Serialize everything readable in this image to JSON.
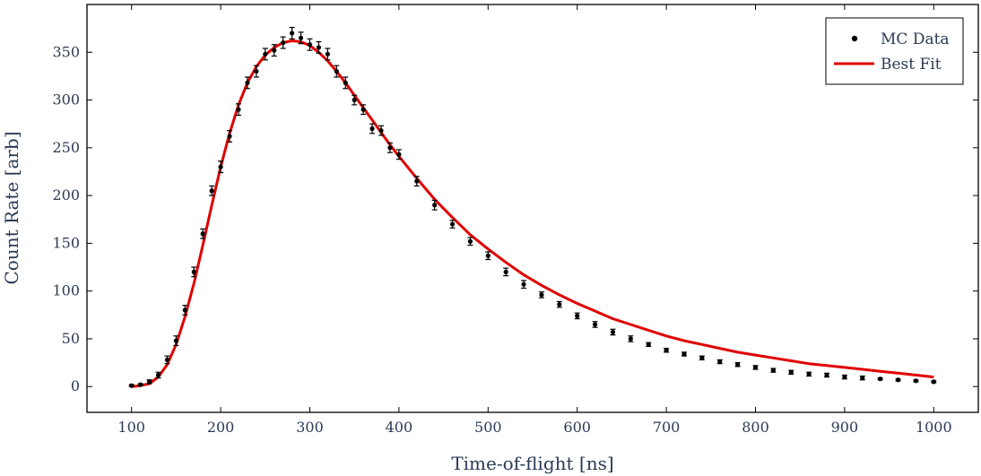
{
  "chart_data": {
    "type": "scatter",
    "title": "",
    "xlabel": "Time-of-flight [ns]",
    "ylabel": "Count Rate [arb]",
    "xlim": [
      50,
      1050
    ],
    "ylim": [
      -27,
      400
    ],
    "xticks": [
      100,
      200,
      300,
      400,
      500,
      600,
      700,
      800,
      900,
      1000
    ],
    "yticks": [
      0,
      50,
      100,
      150,
      200,
      250,
      300,
      350
    ],
    "grid": false,
    "legend": {
      "placement": "top-right",
      "entries": [
        "MC Data",
        "Best Fit"
      ]
    },
    "colors": {
      "data": "#000000",
      "fit": "#e00000",
      "axis": "#000000",
      "text": "#2b3a55"
    },
    "series": [
      {
        "name": "MC Data",
        "kind": "points-with-errorbars",
        "x": [
          100,
          110,
          120,
          130,
          140,
          150,
          160,
          170,
          180,
          190,
          200,
          210,
          220,
          230,
          240,
          250,
          260,
          270,
          280,
          290,
          300,
          310,
          320,
          330,
          340,
          350,
          360,
          370,
          380,
          390,
          400,
          420,
          440,
          460,
          480,
          500,
          520,
          540,
          560,
          580,
          600,
          620,
          640,
          660,
          680,
          700,
          720,
          740,
          760,
          780,
          800,
          820,
          840,
          860,
          880,
          900,
          920,
          940,
          960,
          980,
          1000
        ],
        "y": [
          1,
          2,
          5,
          12,
          28,
          48,
          80,
          120,
          160,
          205,
          230,
          262,
          290,
          318,
          330,
          348,
          352,
          360,
          370,
          365,
          358,
          355,
          348,
          330,
          318,
          300,
          290,
          270,
          268,
          250,
          243,
          215,
          190,
          170,
          152,
          137,
          120,
          107,
          96,
          86,
          74,
          65,
          57,
          50,
          44,
          38,
          34,
          30,
          26,
          23,
          20,
          17,
          15,
          13,
          12,
          10,
          9,
          8,
          7,
          6,
          5
        ],
        "yerr": [
          1,
          1,
          2,
          3,
          4,
          5,
          5,
          5,
          5,
          5,
          6,
          6,
          6,
          6,
          6,
          6,
          6,
          6,
          6,
          6,
          6,
          6,
          6,
          6,
          6,
          5,
          5,
          5,
          5,
          5,
          5,
          5,
          5,
          4,
          4,
          4,
          4,
          4,
          3,
          3,
          3,
          3,
          3,
          3,
          2,
          2,
          2,
          2,
          2,
          2,
          2,
          2,
          2,
          2,
          2,
          2,
          2,
          1,
          1,
          1,
          1
        ]
      },
      {
        "name": "Best Fit",
        "kind": "line",
        "x": [
          100,
          110,
          120,
          130,
          140,
          150,
          160,
          170,
          180,
          190,
          200,
          210,
          220,
          230,
          240,
          250,
          260,
          270,
          280,
          290,
          300,
          310,
          320,
          330,
          340,
          350,
          360,
          370,
          380,
          390,
          400,
          420,
          440,
          460,
          480,
          500,
          520,
          540,
          560,
          580,
          600,
          620,
          640,
          660,
          680,
          700,
          720,
          740,
          760,
          780,
          800,
          820,
          840,
          860,
          880,
          900,
          920,
          940,
          960,
          980,
          1000
        ],
        "y": [
          0,
          1,
          3,
          10,
          23,
          44,
          73,
          108,
          148,
          190,
          230,
          265,
          295,
          318,
          335,
          347,
          355,
          360,
          362,
          361,
          357,
          350,
          341,
          330,
          318,
          305,
          292,
          279,
          266,
          253,
          241,
          218,
          196,
          177,
          159,
          144,
          130,
          117,
          106,
          96,
          87,
          79,
          71,
          65,
          59,
          53,
          48,
          44,
          40,
          36,
          33,
          30,
          27,
          24,
          22,
          20,
          18,
          16,
          14,
          12,
          10
        ]
      }
    ]
  }
}
